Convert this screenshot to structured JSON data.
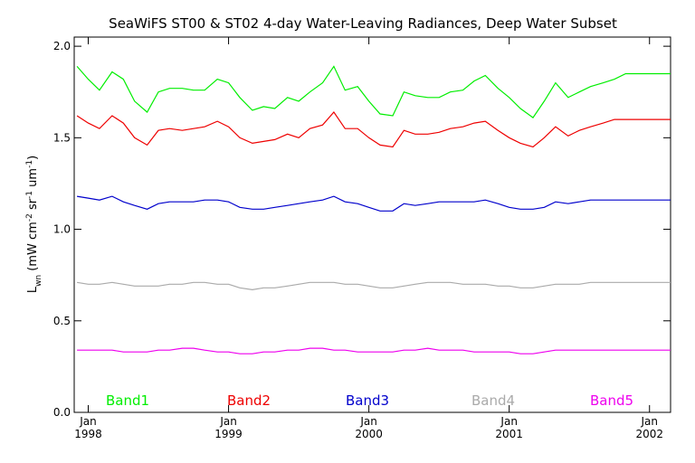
{
  "chart_data": {
    "type": "line",
    "title": "SeaWiFS ST00 & ST02 4-day Water-Leaving Radiances, Deep Water Subset",
    "ylabel": {
      "base": "L",
      "sub": "wn",
      "units_a": " (mW cm",
      "sup1": "-2",
      "units_b": " sr",
      "sup2": "-1",
      "units_c": " um",
      "sup3": "-1",
      "units_d": ")"
    },
    "ylim": [
      0.0,
      2.05
    ],
    "xlim": [
      1997.9,
      2002.15
    ],
    "yticks": [
      {
        "value": 0.0,
        "label": "0.0"
      },
      {
        "value": 0.5,
        "label": "0.5"
      },
      {
        "value": 1.0,
        "label": "1.0"
      },
      {
        "value": 1.5,
        "label": "1.5"
      },
      {
        "value": 2.0,
        "label": "2.0"
      }
    ],
    "xticks": [
      {
        "value": 1998.0,
        "month": "Jan",
        "year": "1998"
      },
      {
        "value": 1999.0,
        "month": "Jan",
        "year": "1999"
      },
      {
        "value": 2000.0,
        "month": "Jan",
        "year": "2000"
      },
      {
        "value": 2001.0,
        "month": "Jan",
        "year": "2001"
      },
      {
        "value": 2002.0,
        "month": "Jan",
        "year": "2002"
      }
    ],
    "x": [
      1997.92,
      1998.0,
      1998.08,
      1998.17,
      1998.25,
      1998.33,
      1998.42,
      1998.5,
      1998.58,
      1998.67,
      1998.75,
      1998.83,
      1998.92,
      1999.0,
      1999.08,
      1999.17,
      1999.25,
      1999.33,
      1999.42,
      1999.5,
      1999.58,
      1999.67,
      1999.75,
      1999.83,
      1999.92,
      2000.0,
      2000.08,
      2000.17,
      2000.25,
      2000.33,
      2000.42,
      2000.5,
      2000.58,
      2000.67,
      2000.75,
      2000.83,
      2000.92,
      2001.0,
      2001.08,
      2001.17,
      2001.25,
      2001.33,
      2001.42,
      2001.5,
      2001.58,
      2001.67,
      2001.75,
      2001.83,
      2001.92,
      2002.0,
      2002.08,
      2002.15
    ],
    "series": [
      {
        "name": "Band1",
        "color": "#00ee00",
        "values": [
          1.89,
          1.82,
          1.76,
          1.86,
          1.82,
          1.7,
          1.64,
          1.75,
          1.77,
          1.77,
          1.76,
          1.76,
          1.82,
          1.8,
          1.72,
          1.65,
          1.67,
          1.66,
          1.72,
          1.7,
          1.75,
          1.8,
          1.89,
          1.76,
          1.78,
          1.7,
          1.63,
          1.62,
          1.75,
          1.73,
          1.72,
          1.72,
          1.75,
          1.76,
          1.81,
          1.84,
          1.77,
          1.72,
          1.66,
          1.61,
          1.7,
          1.8,
          1.72,
          1.75,
          1.78,
          1.8,
          1.82,
          1.85,
          1.85,
          1.85,
          1.85,
          1.85
        ]
      },
      {
        "name": "Band2",
        "color": "#ee0000",
        "values": [
          1.62,
          1.58,
          1.55,
          1.62,
          1.58,
          1.5,
          1.46,
          1.54,
          1.55,
          1.54,
          1.55,
          1.56,
          1.59,
          1.56,
          1.5,
          1.47,
          1.48,
          1.49,
          1.52,
          1.5,
          1.55,
          1.57,
          1.64,
          1.55,
          1.55,
          1.5,
          1.46,
          1.45,
          1.54,
          1.52,
          1.52,
          1.53,
          1.55,
          1.56,
          1.58,
          1.59,
          1.54,
          1.5,
          1.47,
          1.45,
          1.5,
          1.56,
          1.51,
          1.54,
          1.56,
          1.58,
          1.6,
          1.6,
          1.6,
          1.6,
          1.6,
          1.6
        ]
      },
      {
        "name": "Band3",
        "color": "#0000cc",
        "values": [
          1.18,
          1.17,
          1.16,
          1.18,
          1.15,
          1.13,
          1.11,
          1.14,
          1.15,
          1.15,
          1.15,
          1.16,
          1.16,
          1.15,
          1.12,
          1.11,
          1.11,
          1.12,
          1.13,
          1.14,
          1.15,
          1.16,
          1.18,
          1.15,
          1.14,
          1.12,
          1.1,
          1.1,
          1.14,
          1.13,
          1.14,
          1.15,
          1.15,
          1.15,
          1.15,
          1.16,
          1.14,
          1.12,
          1.11,
          1.11,
          1.12,
          1.15,
          1.14,
          1.15,
          1.16,
          1.16,
          1.16,
          1.16,
          1.16,
          1.16,
          1.16,
          1.16
        ]
      },
      {
        "name": "Band4",
        "color": "#aaaaaa",
        "values": [
          0.71,
          0.7,
          0.7,
          0.71,
          0.7,
          0.69,
          0.69,
          0.69,
          0.7,
          0.7,
          0.71,
          0.71,
          0.7,
          0.7,
          0.68,
          0.67,
          0.68,
          0.68,
          0.69,
          0.7,
          0.71,
          0.71,
          0.71,
          0.7,
          0.7,
          0.69,
          0.68,
          0.68,
          0.69,
          0.7,
          0.71,
          0.71,
          0.71,
          0.7,
          0.7,
          0.7,
          0.69,
          0.69,
          0.68,
          0.68,
          0.69,
          0.7,
          0.7,
          0.7,
          0.71,
          0.71,
          0.71,
          0.71,
          0.71,
          0.71,
          0.71,
          0.71
        ]
      },
      {
        "name": "Band5",
        "color": "#ee00ee",
        "values": [
          0.34,
          0.34,
          0.34,
          0.34,
          0.33,
          0.33,
          0.33,
          0.34,
          0.34,
          0.35,
          0.35,
          0.34,
          0.33,
          0.33,
          0.32,
          0.32,
          0.33,
          0.33,
          0.34,
          0.34,
          0.35,
          0.35,
          0.34,
          0.34,
          0.33,
          0.33,
          0.33,
          0.33,
          0.34,
          0.34,
          0.35,
          0.34,
          0.34,
          0.34,
          0.33,
          0.33,
          0.33,
          0.33,
          0.32,
          0.32,
          0.33,
          0.34,
          0.34,
          0.34,
          0.34,
          0.34,
          0.34,
          0.34,
          0.34,
          0.34,
          0.34,
          0.34
        ]
      }
    ],
    "legend": {
      "position": "bottom-inside",
      "orientation": "horizontal"
    },
    "grid": false
  }
}
